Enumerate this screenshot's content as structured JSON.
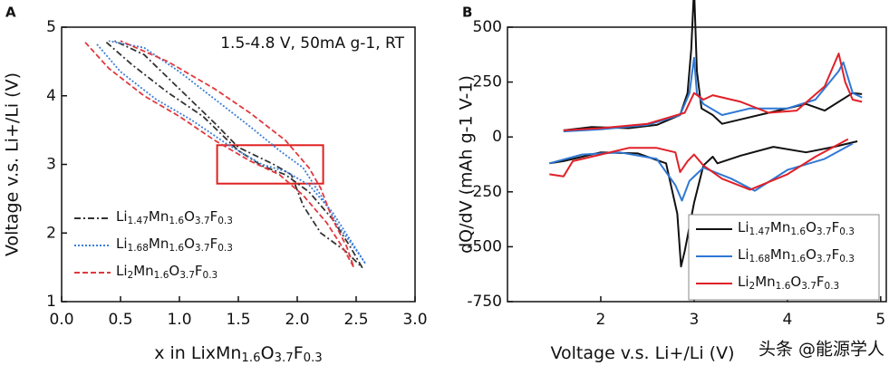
{
  "chart_data": [
    {
      "type": "line",
      "panel": "A",
      "xlabel": "x in LixMn1.6O3.7F0.3",
      "ylabel": "Voltage v.s. Li+/Li (V)",
      "annotation": "1.5-4.8 V, 50mA g-1, RT",
      "xlim": [
        0,
        3
      ],
      "ylim": [
        1,
        5
      ],
      "xticks": [
        {
          "value": 0,
          "label": "0.0"
        },
        {
          "value": 0.5,
          "label": "0.5"
        },
        {
          "value": 1,
          "label": "1.0"
        },
        {
          "value": 1.5,
          "label": "1.5"
        },
        {
          "value": 2,
          "label": "2.0"
        },
        {
          "value": 2.5,
          "label": "2.5"
        },
        {
          "value": 3,
          "label": "3.0"
        }
      ],
      "yticks": [
        1,
        2,
        3,
        4,
        5
      ],
      "highlight": {
        "x": [
          1.32,
          2.22
        ],
        "y": [
          2.72,
          3.28
        ],
        "color": "#e02020"
      },
      "legend": "lower left",
      "series": [
        {
          "name": "Li1.47Mn1.6O3.7F0.3",
          "color": "#333333",
          "dash": "dashdot",
          "x": [
            0.38,
            0.6,
            0.9,
            1.2,
            1.5,
            1.7,
            1.9,
            2.1,
            2.3,
            2.45,
            2.55,
            2.4,
            2.2,
            2.05,
            1.95,
            1.8,
            1.5,
            1.3,
            1.0,
            0.7,
            0.45
          ],
          "y": [
            4.78,
            4.45,
            4.05,
            3.7,
            3.2,
            2.98,
            2.85,
            2.6,
            2.2,
            1.8,
            1.5,
            1.75,
            2.0,
            2.4,
            2.85,
            3.0,
            3.25,
            3.6,
            4.1,
            4.6,
            4.8
          ]
        },
        {
          "name": "Li1.68Mn1.6O3.7F0.3",
          "color": "#3b7fd9",
          "dash": "dotted",
          "x": [
            0.3,
            0.5,
            0.8,
            1.1,
            1.4,
            1.7,
            1.9,
            2.1,
            2.3,
            2.45,
            2.58,
            2.5,
            2.35,
            2.2,
            2.05,
            1.85,
            1.6,
            1.3,
            1.0,
            0.7,
            0.4
          ],
          "y": [
            4.75,
            4.35,
            3.95,
            3.65,
            3.3,
            3.0,
            2.9,
            2.7,
            2.3,
            1.9,
            1.55,
            1.75,
            2.1,
            2.55,
            2.95,
            3.2,
            3.55,
            3.95,
            4.35,
            4.7,
            4.8
          ]
        },
        {
          "name": "Li2Mn1.6O3.7F0.3",
          "color": "#e0393e",
          "dash": "dashed",
          "x": [
            0.2,
            0.4,
            0.7,
            1.0,
            1.3,
            1.6,
            1.85,
            2.05,
            2.25,
            2.4,
            2.48,
            2.42,
            2.3,
            2.2,
            2.1,
            1.9,
            1.6,
            1.3,
            0.9,
            0.5
          ],
          "y": [
            4.78,
            4.4,
            4.0,
            3.7,
            3.35,
            3.05,
            2.85,
            2.55,
            2.15,
            1.75,
            1.5,
            1.8,
            2.2,
            2.65,
            2.95,
            3.35,
            3.75,
            4.1,
            4.5,
            4.8
          ]
        }
      ]
    },
    {
      "type": "line",
      "panel": "B",
      "xlabel": "Voltage v.s. Li+/Li (V)",
      "ylabel": "dQ/dV (mAh g-1 V-1)",
      "watermark": "头条 @能源学人",
      "xlim": [
        1,
        5.06
      ],
      "ylim": [
        -750,
        500
      ],
      "xticks": [
        2,
        3,
        4,
        5
      ],
      "yticks": [
        -750,
        -500,
        -250,
        0,
        250,
        500
      ],
      "legend": "lower right",
      "series": [
        {
          "name": "Li1.47Mn1.6O3.7F0.3",
          "color": "#111111",
          "x": [
            1.6,
            1.9,
            2.3,
            2.6,
            2.85,
            2.93,
            2.97,
            3.0,
            3.03,
            3.08,
            3.2,
            3.3,
            3.5,
            3.8,
            4.2,
            4.4,
            4.7,
            4.8,
            null,
            4.75,
            4.5,
            4.2,
            3.85,
            3.5,
            3.25,
            3.2,
            3.1,
            3.0,
            2.9,
            2.86,
            2.82,
            2.7,
            2.4,
            2.0,
            1.6,
            1.45
          ],
          "y": [
            30,
            45,
            40,
            55,
            100,
            200,
            400,
            680,
            300,
            130,
            100,
            60,
            80,
            110,
            150,
            120,
            200,
            195,
            null,
            -20,
            -45,
            -70,
            -45,
            -85,
            -120,
            -90,
            -130,
            -300,
            -520,
            -590,
            -350,
            -120,
            -75,
            -70,
            -110,
            -120
          ]
        },
        {
          "name": "Li1.68Mn1.6O3.7F0.3",
          "color": "#2f78d4",
          "x": [
            1.6,
            2.0,
            2.5,
            2.85,
            2.95,
            3.0,
            3.03,
            3.1,
            3.3,
            3.6,
            4.0,
            4.3,
            4.55,
            4.6,
            4.7,
            4.8,
            null,
            4.7,
            4.4,
            4.0,
            3.65,
            3.4,
            3.1,
            2.95,
            2.87,
            2.8,
            2.6,
            2.2,
            1.8,
            1.45
          ],
          "y": [
            25,
            35,
            55,
            100,
            200,
            360,
            200,
            150,
            100,
            130,
            130,
            170,
            300,
            340,
            200,
            180,
            null,
            -30,
            -100,
            -150,
            -245,
            -190,
            -140,
            -200,
            -290,
            -220,
            -100,
            -70,
            -80,
            -120
          ]
        },
        {
          "name": "Li2Mn1.6O3.7F0.3",
          "color": "#e02028",
          "x": [
            1.6,
            2.0,
            2.5,
            2.9,
            3.0,
            3.1,
            3.2,
            3.5,
            3.8,
            4.1,
            4.4,
            4.55,
            4.62,
            4.7,
            4.8,
            null,
            4.65,
            4.3,
            4.0,
            3.6,
            3.3,
            3.1,
            3.0,
            2.93,
            2.85,
            2.8,
            2.6,
            2.3,
            2.0,
            1.7,
            1.6,
            1.45
          ],
          "y": [
            30,
            40,
            60,
            110,
            200,
            170,
            190,
            160,
            110,
            120,
            230,
            380,
            250,
            170,
            160,
            null,
            -10,
            -90,
            -170,
            -240,
            -190,
            -130,
            -80,
            -110,
            -160,
            -70,
            -50,
            -50,
            -80,
            -110,
            -180,
            -170
          ]
        }
      ]
    }
  ]
}
